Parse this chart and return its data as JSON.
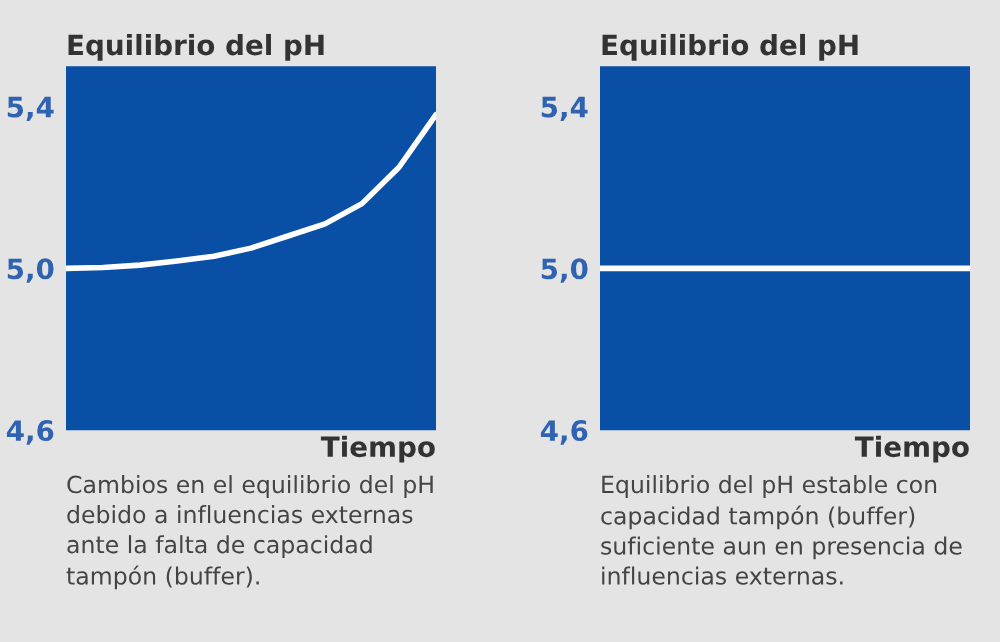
{
  "chart_data": [
    {
      "type": "line",
      "title": "Equilibrio del pH",
      "xlabel": "Tiempo",
      "categories": [
        null,
        null,
        null,
        null,
        null,
        null,
        null,
        null,
        null,
        null,
        null
      ],
      "series": [
        {
          "color": "#ffffff",
          "values": [
            5.0,
            5.002,
            5.008,
            5.018,
            5.03,
            5.05,
            5.08,
            5.11,
            5.16,
            5.25,
            5.38
          ]
        }
      ],
      "ylim": [
        4.6,
        5.5
      ],
      "yticks": [
        {
          "value": 4.6,
          "label": "4,6"
        },
        {
          "value": 5.0,
          "label": "5,0"
        },
        {
          "value": 5.4,
          "label": "5,4"
        }
      ],
      "tick_labels": "y",
      "grid": false,
      "legend": false,
      "marker": "none",
      "line_style": "solid",
      "annotations": [
        "Cambios en el equilibrio del pH debido a influencias externas ante la falta de capacidad tampón (buffer)."
      ]
    },
    {
      "type": "line",
      "title": "Equilibrio del pH",
      "xlabel": "Tiempo",
      "categories": [
        null,
        null,
        null,
        null,
        null,
        null,
        null,
        null,
        null,
        null,
        null
      ],
      "series": [
        {
          "color": "#ffffff",
          "values": [
            5.0,
            5.0,
            5.0,
            5.0,
            5.0,
            5.0,
            5.0,
            5.0,
            5.0,
            5.0,
            5.0
          ]
        }
      ],
      "ylim": [
        4.6,
        5.5
      ],
      "yticks": [
        {
          "value": 4.6,
          "label": "4,6"
        },
        {
          "value": 5.0,
          "label": "5,0"
        },
        {
          "value": 5.4,
          "label": "5,4"
        }
      ],
      "tick_labels": "y",
      "grid": false,
      "legend": false,
      "marker": "none",
      "line_style": "solid",
      "annotations": [
        "Equilibrio del pH estable con capacidad tampón (buffer) suficiente aun en presencia de influencias externas."
      ]
    }
  ]
}
